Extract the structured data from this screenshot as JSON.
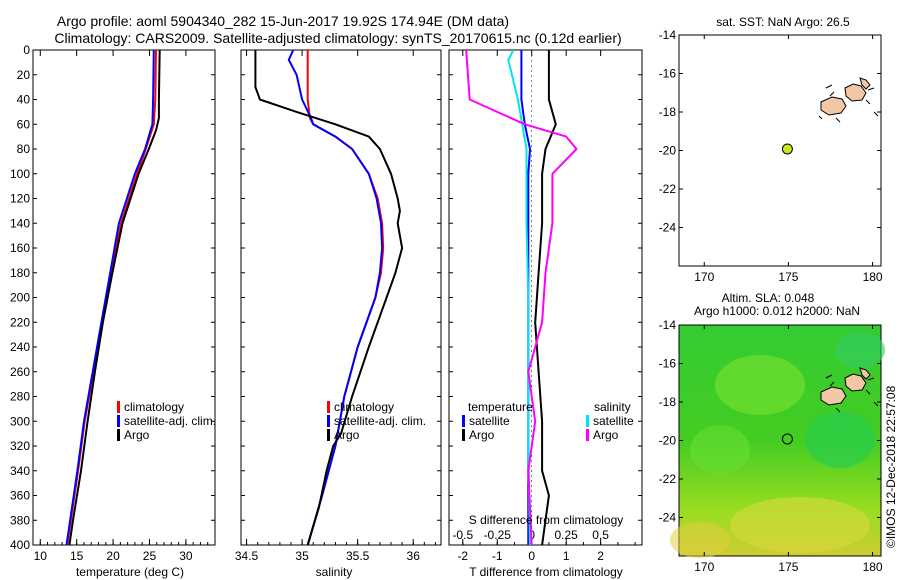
{
  "title": {
    "line1": "Argo profile: aoml 5904340_282 15-Jun-2017 19.92S 174.94E (DM data)",
    "line2": "Climatology: CARS2009. Satellite-adjusted climatology: synTS_20170615.nc (0.12d earlier)"
  },
  "colors": {
    "climatology": "#ff0000",
    "satellite": "#0000ff",
    "argo": "#000000",
    "sat_salinity": "#00e5ee",
    "argo_salinity": "#ff00ff"
  },
  "depth_ticks": [
    "0",
    "20",
    "40",
    "60",
    "80",
    "100",
    "120",
    "140",
    "160",
    "180",
    "200",
    "220",
    "240",
    "260",
    "280",
    "300",
    "320",
    "340",
    "360",
    "380",
    "400"
  ],
  "chart_data": [
    {
      "type": "line",
      "title": "",
      "xlabel": "temperature (deg C)",
      "ylabel": "",
      "xlim": [
        9,
        34
      ],
      "ylim": [
        400,
        0
      ],
      "xticks": [
        "10",
        "15",
        "20",
        "25",
        "30"
      ],
      "legend": [
        "climatology",
        "satellite-adj. clim.",
        "Argo"
      ],
      "series": [
        {
          "name": "climatology",
          "depth": [
            0,
            40,
            60,
            80,
            100,
            140,
            180,
            220,
            260,
            300,
            340,
            400
          ],
          "values": [
            25.9,
            25.8,
            25.6,
            24.5,
            23.3,
            21.1,
            19.7,
            18.5,
            17.3,
            16.1,
            15.2,
            13.7
          ]
        },
        {
          "name": "satellite-adj. clim.",
          "depth": [
            0,
            40,
            60,
            80,
            100,
            140,
            180,
            220,
            260,
            300,
            340,
            400
          ],
          "values": [
            25.6,
            25.5,
            25.4,
            24.4,
            23.0,
            20.8,
            19.6,
            18.4,
            17.2,
            16.0,
            15.1,
            13.6
          ]
        },
        {
          "name": "Argo",
          "depth": [
            0,
            40,
            55,
            65,
            80,
            100,
            140,
            180,
            220,
            260,
            300,
            340,
            380,
            400
          ],
          "values": [
            26.4,
            26.3,
            26.3,
            25.9,
            24.9,
            23.5,
            21.3,
            19.9,
            18.6,
            17.5,
            16.5,
            15.6,
            14.5,
            14.0
          ]
        }
      ]
    },
    {
      "type": "line",
      "title": "",
      "xlabel": "salinity",
      "ylabel": "",
      "xlim": [
        34.45,
        36.25
      ],
      "ylim": [
        400,
        0
      ],
      "xticks": [
        "34.5",
        "35",
        "35.5",
        "36"
      ],
      "legend": [
        "climatology",
        "satellite-adj. clim.",
        "Argo"
      ],
      "series": [
        {
          "name": "climatology",
          "depth": [
            0,
            40,
            55,
            60,
            70,
            80,
            100,
            120,
            140,
            160,
            180,
            200,
            240,
            280,
            320,
            360,
            400
          ],
          "values": [
            35.05,
            35.05,
            35.07,
            35.1,
            35.3,
            35.45,
            35.6,
            35.68,
            35.72,
            35.73,
            35.71,
            35.66,
            35.5,
            35.38,
            35.3,
            35.18,
            35.05
          ]
        },
        {
          "name": "satellite-adj. clim.",
          "depth": [
            0,
            8,
            20,
            40,
            55,
            60,
            70,
            80,
            100,
            120,
            140,
            160,
            180,
            200,
            240,
            280,
            320,
            360,
            400
          ],
          "values": [
            34.92,
            34.88,
            34.95,
            35.0,
            35.08,
            35.1,
            35.3,
            35.45,
            35.6,
            35.67,
            35.71,
            35.72,
            35.7,
            35.66,
            35.5,
            35.38,
            35.3,
            35.18,
            35.05
          ]
        },
        {
          "name": "Argo",
          "depth": [
            0,
            30,
            35,
            40,
            50,
            60,
            70,
            80,
            100,
            120,
            130,
            140,
            160,
            180,
            200,
            240,
            280,
            310,
            320,
            340,
            370,
            400
          ],
          "values": [
            34.58,
            34.58,
            34.6,
            34.62,
            34.95,
            35.3,
            35.6,
            35.7,
            35.8,
            35.86,
            35.88,
            35.86,
            35.9,
            35.84,
            35.76,
            35.6,
            35.45,
            35.35,
            35.28,
            35.22,
            35.15,
            35.05
          ]
        }
      ]
    },
    {
      "type": "line",
      "title": "",
      "xlabel": "T difference from climatology",
      "xlabel_top": "S difference from climatology",
      "xlim": [
        -2.4,
        3.2
      ],
      "ylim": [
        400,
        0
      ],
      "xticks": [
        "-2",
        "-1",
        "0",
        "1",
        "2"
      ],
      "xticks_top": [
        "-0.5",
        "-0.25",
        "0",
        "0.25",
        "0.5"
      ],
      "legend_temperature": [
        "temperature",
        "satellite",
        "Argo"
      ],
      "legend_salinity": [
        "salinity",
        "satellite",
        "Argo"
      ],
      "series": [
        {
          "name": "temperature satellite",
          "depth": [
            0,
            40,
            60,
            80,
            100,
            140,
            180,
            220,
            260,
            300,
            340,
            400
          ],
          "values": [
            -0.3,
            -0.3,
            -0.2,
            -0.05,
            -0.1,
            -0.1,
            -0.1,
            -0.1,
            -0.1,
            -0.1,
            -0.1,
            -0.1
          ]
        },
        {
          "name": "temperature Argo",
          "depth": [
            0,
            40,
            60,
            80,
            100,
            140,
            180,
            220,
            260,
            300,
            340,
            360,
            380,
            400
          ],
          "values": [
            0.5,
            0.5,
            0.7,
            0.4,
            0.3,
            0.3,
            0.2,
            0.1,
            0.2,
            0.3,
            0.3,
            0.5,
            0.4,
            0.3
          ]
        },
        {
          "name": "salinity satellite",
          "depth": [
            0,
            8,
            40,
            80,
            100,
            140,
            200,
            260,
            320,
            400
          ],
          "values": [
            -0.53,
            -0.68,
            -0.4,
            -0.15,
            -0.15,
            -0.15,
            -0.1,
            -0.1,
            -0.1,
            -0.05
          ]
        },
        {
          "name": "salinity Argo",
          "depth": [
            0,
            40,
            60,
            70,
            80,
            100,
            140,
            180,
            220,
            260,
            300,
            340,
            400
          ],
          "values": [
            -1.9,
            -1.8,
            -0.2,
            1.0,
            1.3,
            0.6,
            0.6,
            0.4,
            0.3,
            -0.1,
            0.1,
            -0.1,
            0.0
          ]
        }
      ]
    }
  ],
  "sst_map": {
    "title": "sat. SST: NaN Argo: 26.5",
    "yticks": [
      "-14",
      "-16",
      "-18",
      "-20",
      "-22",
      "-24"
    ],
    "xticks": [
      "170",
      "175",
      "180"
    ],
    "lat_range": [
      -26,
      -14
    ],
    "lon_range": [
      168.5,
      180.5
    ],
    "argo_position": {
      "lon": 174.94,
      "lat": -19.92
    }
  },
  "sla_map": {
    "title_line1": "Altim. SLA: 0.048",
    "title_line2": "Argo h1000: 0.012 h2000: NaN",
    "yticks": [
      "-14",
      "-16",
      "-18",
      "-20",
      "-22",
      "-24"
    ],
    "xticks": [
      "170",
      "175",
      "180"
    ],
    "lat_range": [
      -26,
      -14
    ],
    "lon_range": [
      168.5,
      180.5
    ],
    "argo_position": {
      "lon": 174.94,
      "lat": -19.92
    }
  },
  "credit": "©IMOS 12-Dec-2018 22:57:08"
}
